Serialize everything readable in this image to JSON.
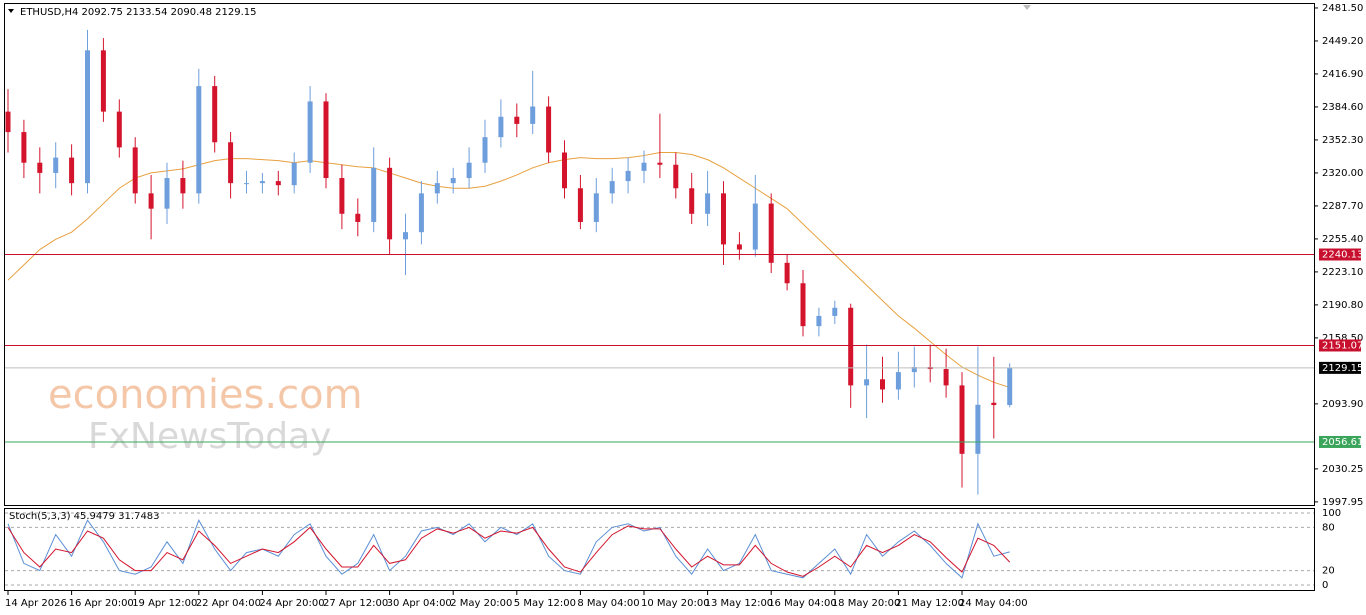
{
  "chart_data": [
    {
      "type": "candlestick",
      "title": "ETHUSD,H4 2092.75 2133.54 2090.48 2129.15",
      "watermark": [
        "economies.com",
        "FxNewsToday"
      ],
      "categories": [
        "14 Apr 2026",
        null,
        null,
        null,
        "16 Apr 20:00",
        null,
        null,
        null,
        "19 Apr 12:00",
        null,
        null,
        null,
        "22 Apr 04:00",
        null,
        null,
        null,
        "24 Apr 20:00",
        null,
        null,
        null,
        "27 Apr 12:00",
        null,
        null,
        null,
        "30 Apr 04:00",
        null,
        null,
        null,
        "2 May 20:00",
        null,
        null,
        null,
        "5 May 12:00",
        null,
        null,
        null,
        "8 May 04:00",
        null,
        null,
        null,
        "10 May 20:00",
        null,
        null,
        null,
        "13 May 12:00",
        null,
        null,
        null,
        "16 May 04:00",
        null,
        null,
        null,
        "18 May 20:00",
        null,
        null,
        null,
        "21 May 12:00",
        null,
        null,
        null,
        "24 May 04:00",
        null,
        null,
        null
      ],
      "open": [
        2380,
        2360,
        2330,
        2320,
        2335,
        2310,
        2440,
        2380,
        2345,
        2300,
        2285,
        2315,
        2300,
        2405,
        2350,
        2310,
        2310,
        2312,
        2308,
        2330,
        2390,
        2315,
        2280,
        2272,
        2325,
        2255,
        2262,
        2300,
        2310,
        2315,
        2330,
        2355,
        2375,
        2368,
        2385,
        2340,
        2305,
        2272,
        2300,
        2312,
        2322,
        2330,
        2328,
        2305,
        2280,
        2300,
        2250,
        2245,
        2290,
        2232,
        2212,
        2170,
        2180,
        2188,
        2112,
        2118,
        2108,
        2125,
        2130,
        2128,
        2112,
        2045,
        2095,
        2092.75
      ],
      "high": [
        2402,
        2372,
        2345,
        2350,
        2348,
        2460,
        2452,
        2392,
        2355,
        2318,
        2330,
        2332,
        2422,
        2415,
        2360,
        2322,
        2320,
        2322,
        2340,
        2405,
        2398,
        2328,
        2295,
        2345,
        2335,
        2280,
        2312,
        2322,
        2325,
        2345,
        2372,
        2392,
        2388,
        2420,
        2395,
        2352,
        2318,
        2315,
        2325,
        2335,
        2342,
        2378,
        2340,
        2320,
        2322,
        2312,
        2262,
        2318,
        2300,
        2240,
        2225,
        2188,
        2195,
        2192,
        2152,
        2140,
        2145,
        2150,
        2152,
        2148,
        2125,
        2150,
        2140,
        2133.54
      ],
      "low": [
        2340,
        2315,
        2300,
        2305,
        2298,
        2300,
        2370,
        2335,
        2290,
        2255,
        2270,
        2285,
        2290,
        2340,
        2295,
        2300,
        2300,
        2298,
        2300,
        2320,
        2305,
        2265,
        2258,
        2262,
        2240,
        2220,
        2250,
        2290,
        2300,
        2305,
        2320,
        2345,
        2355,
        2358,
        2330,
        2295,
        2265,
        2262,
        2290,
        2300,
        2310,
        2315,
        2295,
        2270,
        2268,
        2230,
        2235,
        2238,
        2222,
        2205,
        2160,
        2160,
        2172,
        2090,
        2080,
        2095,
        2098,
        2110,
        2115,
        2100,
        2012,
        2005,
        2060,
        2090.48
      ],
      "close": [
        2360,
        2330,
        2320,
        2335,
        2310,
        2440,
        2380,
        2345,
        2300,
        2285,
        2315,
        2300,
        2405,
        2350,
        2310,
        2310,
        2312,
        2308,
        2330,
        2390,
        2315,
        2280,
        2272,
        2325,
        2255,
        2262,
        2300,
        2310,
        2315,
        2330,
        2355,
        2375,
        2368,
        2385,
        2340,
        2305,
        2272,
        2300,
        2312,
        2322,
        2330,
        2328,
        2305,
        2280,
        2300,
        2250,
        2245,
        2290,
        2232,
        2212,
        2170,
        2180,
        2188,
        2112,
        2118,
        2108,
        2125,
        2130,
        2128,
        2112,
        2045,
        2093,
        2092.75,
        2129.15
      ],
      "bull_color": "#6e9fdc",
      "bear_color": "#d3142c",
      "series": [
        {
          "color": "#e8a040",
          "values": [
            2215,
            2230,
            2245,
            2255,
            2262,
            2275,
            2290,
            2305,
            2315,
            2320,
            2322,
            2324,
            2328,
            2332,
            2334,
            2334,
            2333,
            2332,
            2330,
            2332,
            2330,
            2328,
            2326,
            2325,
            2320,
            2315,
            2310,
            2307,
            2305,
            2305,
            2307,
            2312,
            2318,
            2325,
            2330,
            2333,
            2335,
            2334,
            2334,
            2335,
            2337,
            2340,
            2340,
            2338,
            2333,
            2325,
            2315,
            2305,
            2295,
            2285,
            2270,
            2255,
            2240,
            2225,
            2210,
            2195,
            2180,
            2168,
            2155,
            2142,
            2130,
            2122,
            2115,
            2110
          ]
        }
      ],
      "levels": [
        {
          "value": 2240.13,
          "color": "#c8102e"
        },
        {
          "value": 2151.07,
          "color": "#c8102e"
        },
        {
          "value": 2129.15,
          "color": "#000000",
          "line_color": "#bdbdbd"
        },
        {
          "value": 2056.61,
          "color": "#3aa55a"
        }
      ],
      "ylim": [
        1994.9,
        2484.4
      ],
      "yticks": [
        {
          "value": 2481.5,
          "label": "2481.50"
        },
        {
          "value": 2449.2,
          "label": "2449.20"
        },
        {
          "value": 2416.9,
          "label": "2416.90"
        },
        {
          "value": 2384.6,
          "label": "2384.60"
        },
        {
          "value": 2352.3,
          "label": "2352.30"
        },
        {
          "value": 2320,
          "label": "2320.00"
        },
        {
          "value": 2287.7,
          "label": "2287.70"
        },
        {
          "value": 2255.4,
          "label": "2255.40"
        },
        {
          "value": 2223.1,
          "label": "2223.10"
        },
        {
          "value": 2190.8,
          "label": "2190.80"
        },
        {
          "value": 2158.5,
          "label": "2158.50"
        },
        {
          "value": 2093.9,
          "label": "2093.90"
        },
        {
          "value": 2030.25,
          "label": "2030.25"
        },
        {
          "value": 1997.95,
          "label": "1997.95"
        }
      ]
    },
    {
      "type": "line",
      "title": "Stoch(5,3,3) 45.9479 31.7483",
      "series": [
        {
          "color": "#5b8fd4",
          "values": [
            85,
            30,
            20,
            70,
            40,
            90,
            60,
            20,
            15,
            25,
            60,
            30,
            90,
            50,
            20,
            45,
            50,
            40,
            70,
            85,
            40,
            15,
            30,
            70,
            20,
            40,
            75,
            80,
            70,
            85,
            60,
            80,
            70,
            85,
            40,
            20,
            15,
            60,
            80,
            85,
            75,
            80,
            40,
            15,
            50,
            20,
            30,
            70,
            20,
            15,
            10,
            30,
            50,
            15,
            70,
            40,
            60,
            75,
            55,
            30,
            10,
            85,
            40,
            45.9479
          ]
        },
        {
          "color": "#d3142c",
          "values": [
            80,
            45,
            25,
            50,
            45,
            75,
            65,
            35,
            20,
            20,
            45,
            35,
            75,
            55,
            30,
            40,
            50,
            45,
            60,
            80,
            50,
            25,
            25,
            55,
            30,
            35,
            65,
            78,
            72,
            80,
            65,
            75,
            72,
            80,
            50,
            25,
            18,
            45,
            70,
            82,
            78,
            78,
            50,
            25,
            40,
            28,
            28,
            55,
            30,
            18,
            12,
            25,
            40,
            25,
            55,
            45,
            55,
            70,
            60,
            38,
            18,
            65,
            55,
            31.7483
          ]
        }
      ],
      "ylim": [
        0,
        100
      ],
      "yticks": [
        100,
        80,
        20,
        0
      ],
      "grid": true
    }
  ]
}
